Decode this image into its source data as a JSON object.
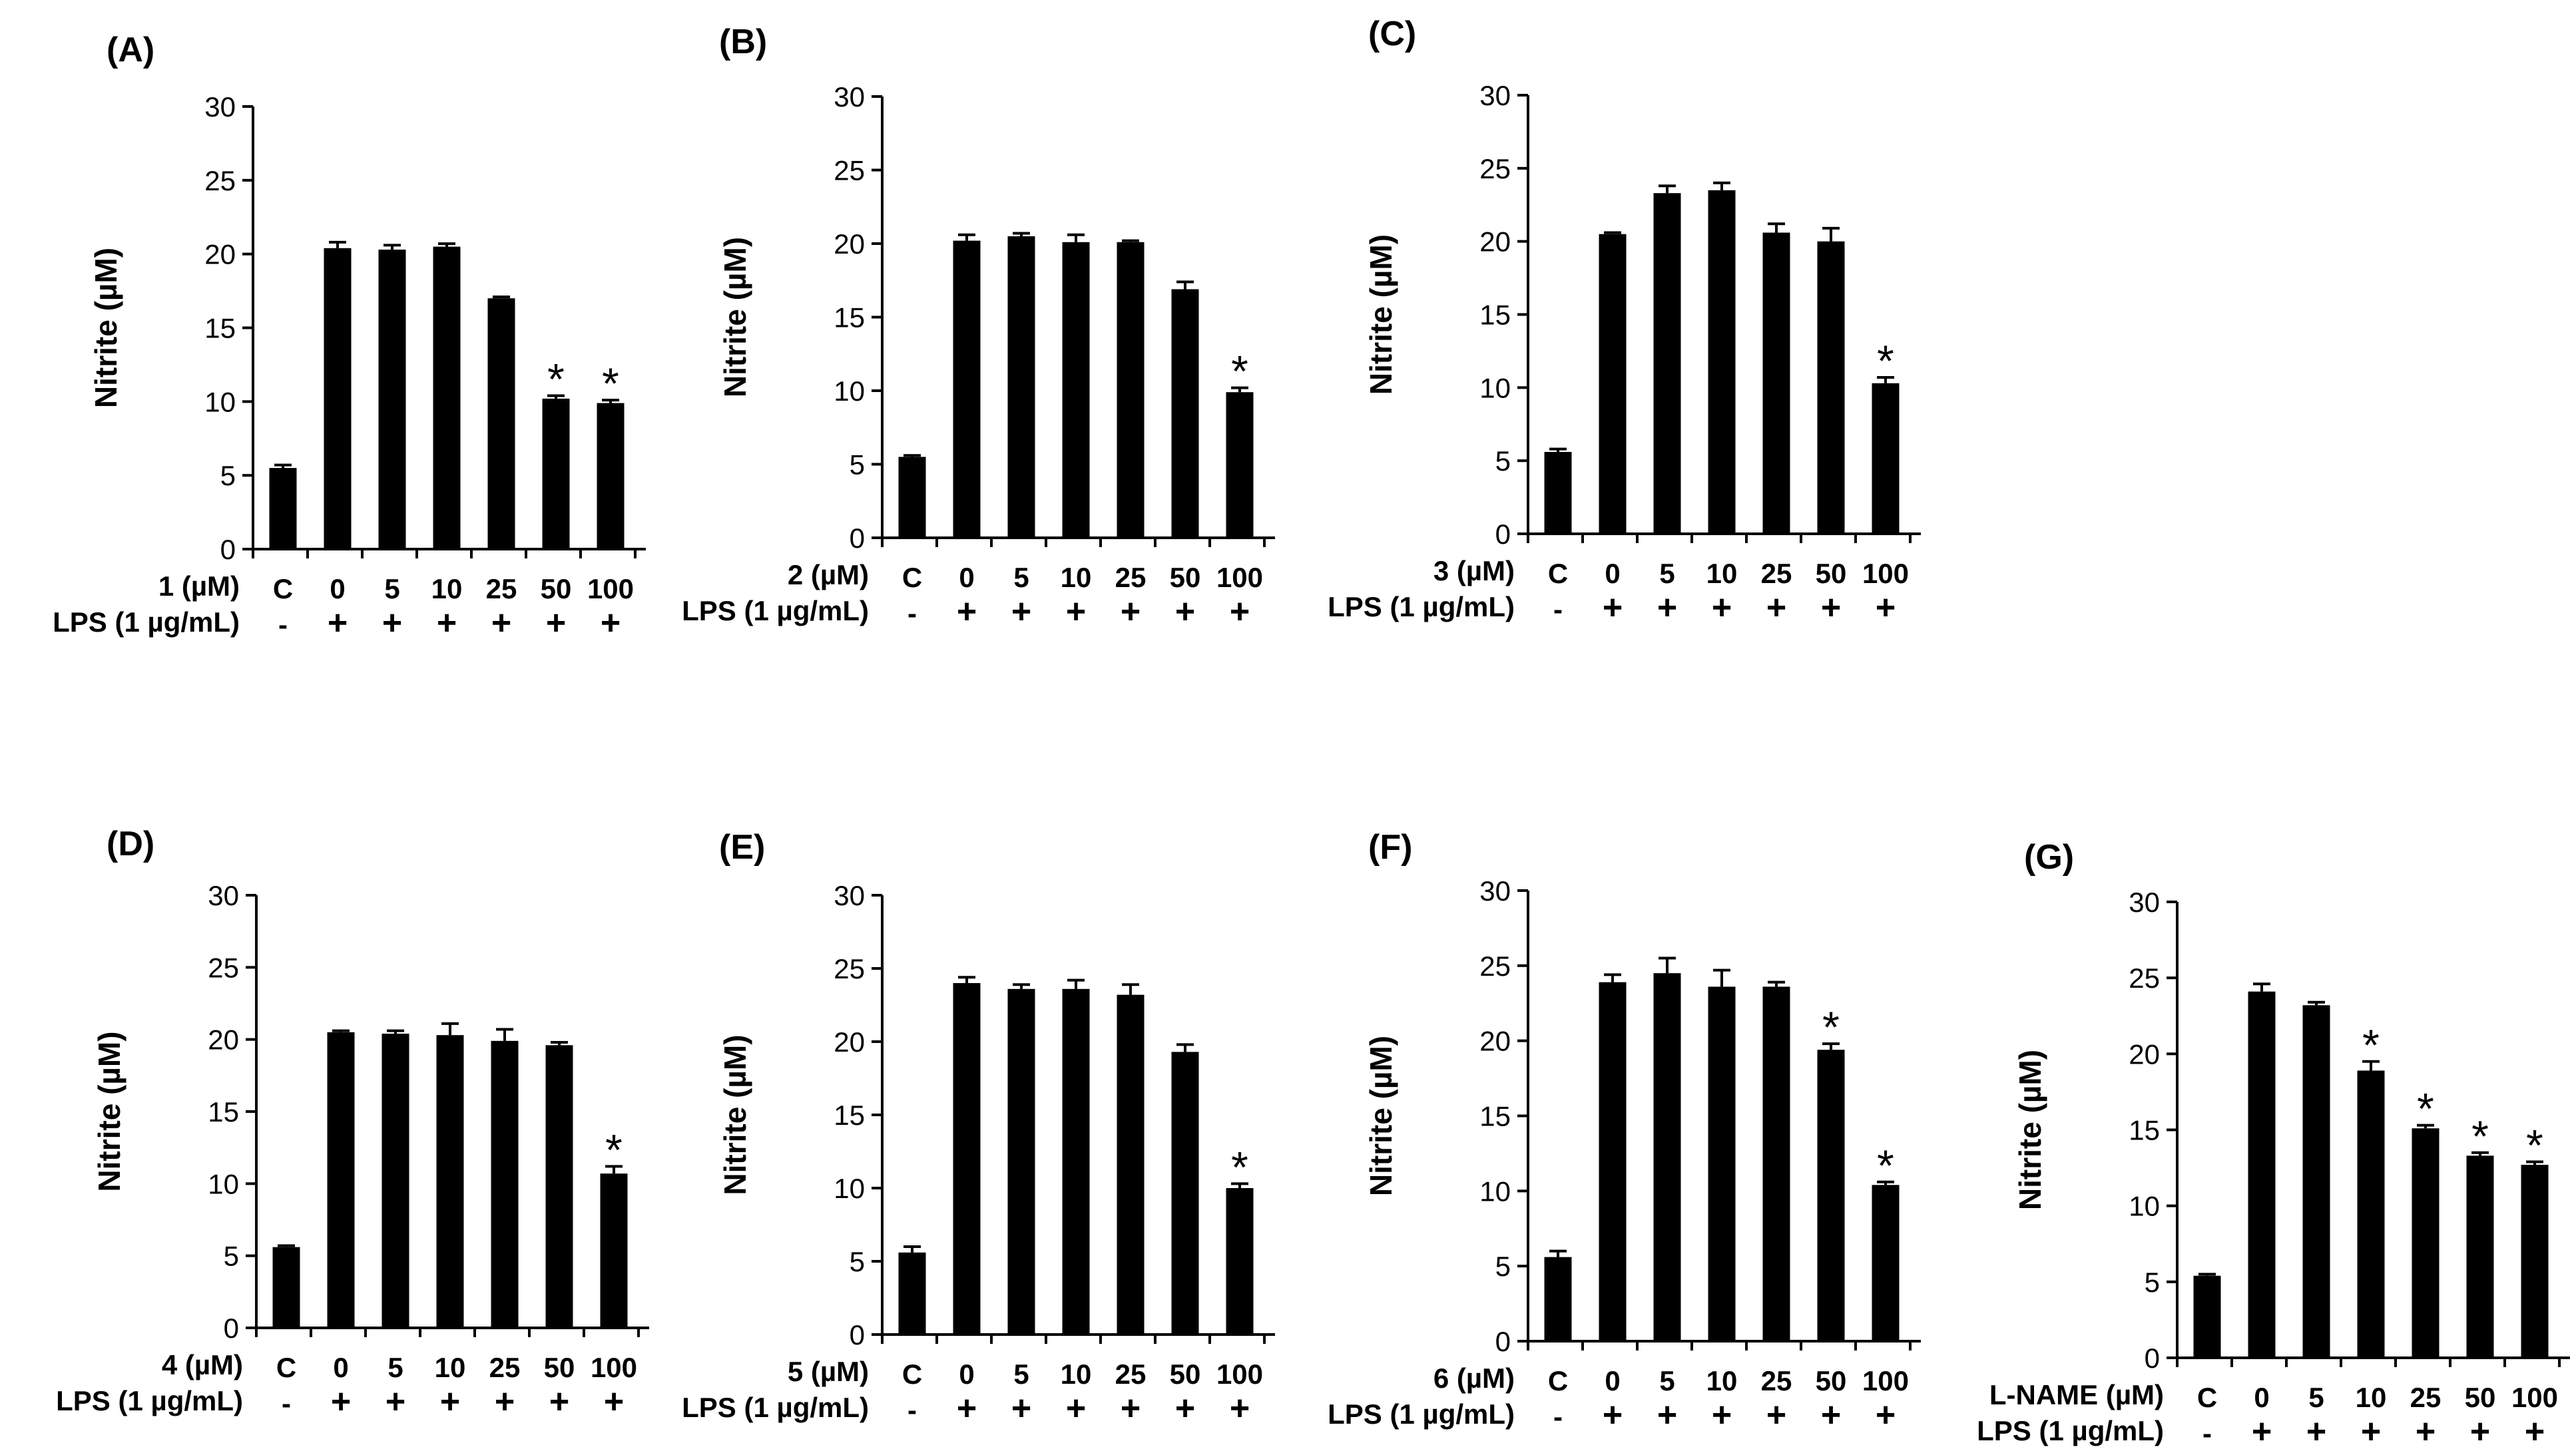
{
  "figure": {
    "ylabel": "Nitrite  (µM)",
    "lps_label": "LPS (1 µg/mL)",
    "lps_row": [
      "-",
      "+",
      "+",
      "+",
      "+",
      "+",
      "+"
    ],
    "categories": [
      "C",
      "0",
      "5",
      "10",
      "25",
      "50",
      "100"
    ],
    "yticks": [
      "0",
      "5",
      "10",
      "15",
      "20",
      "25",
      "30"
    ],
    "significance_marker": "*",
    "colors": {
      "bar": "#000000",
      "axis": "#000000",
      "background": "#ffffff"
    }
  },
  "chart_data": [
    {
      "type": "bar",
      "panel": "(A)",
      "title": "(A)",
      "xlabel": "1 (µM)",
      "ylabel": "Nitrite  (µM)",
      "categories": [
        "C",
        "0",
        "5",
        "10",
        "25",
        "50",
        "100"
      ],
      "values": [
        5.5,
        20.4,
        20.3,
        20.5,
        17.0,
        10.2,
        9.9
      ],
      "errors": [
        0.2,
        0.4,
        0.3,
        0.2,
        0.1,
        0.2,
        0.2
      ],
      "significant": [
        false,
        false,
        false,
        false,
        false,
        true,
        true
      ],
      "lps": [
        "-",
        "+",
        "+",
        "+",
        "+",
        "+",
        "+"
      ],
      "ylim": [
        0,
        30
      ],
      "yticks": [
        0,
        5,
        10,
        15,
        20,
        25,
        30
      ]
    },
    {
      "type": "bar",
      "panel": "(B)",
      "title": "(B)",
      "xlabel": "2 (µM)",
      "ylabel": "Nitrite  (µM)",
      "categories": [
        "C",
        "0",
        "5",
        "10",
        "25",
        "50",
        "100"
      ],
      "values": [
        5.5,
        20.2,
        20.5,
        20.1,
        20.1,
        16.9,
        9.9
      ],
      "errors": [
        0.1,
        0.4,
        0.2,
        0.5,
        0.1,
        0.5,
        0.3
      ],
      "significant": [
        false,
        false,
        false,
        false,
        false,
        false,
        true
      ],
      "lps": [
        "-",
        "+",
        "+",
        "+",
        "+",
        "+",
        "+"
      ],
      "ylim": [
        0,
        30
      ],
      "yticks": [
        0,
        5,
        10,
        15,
        20,
        25,
        30
      ]
    },
    {
      "type": "bar",
      "panel": "(C)",
      "title": "(C)",
      "xlabel": "3 (µM)",
      "ylabel": "Nitrite  (µM)",
      "categories": [
        "C",
        "0",
        "5",
        "10",
        "25",
        "50",
        "100"
      ],
      "values": [
        5.6,
        20.5,
        23.3,
        23.5,
        20.6,
        20.0,
        10.3
      ],
      "errors": [
        0.2,
        0.1,
        0.5,
        0.5,
        0.6,
        0.9,
        0.4
      ],
      "significant": [
        false,
        false,
        false,
        false,
        false,
        false,
        true
      ],
      "lps": [
        "-",
        "+",
        "+",
        "+",
        "+",
        "+",
        "+"
      ],
      "ylim": [
        0,
        30
      ],
      "yticks": [
        0,
        5,
        10,
        15,
        20,
        25,
        30
      ]
    },
    {
      "type": "bar",
      "panel": "(D)",
      "title": "(D)",
      "xlabel": "4 (µM)",
      "ylabel": "Nitrite  (µM)",
      "categories": [
        "C",
        "0",
        "5",
        "10",
        "25",
        "50",
        "100"
      ],
      "values": [
        5.6,
        20.5,
        20.4,
        20.3,
        19.9,
        19.6,
        10.7
      ],
      "errors": [
        0.1,
        0.1,
        0.2,
        0.8,
        0.8,
        0.2,
        0.5
      ],
      "significant": [
        false,
        false,
        false,
        false,
        false,
        false,
        true
      ],
      "lps": [
        "-",
        "+",
        "+",
        "+",
        "+",
        "+",
        "+"
      ],
      "ylim": [
        0,
        30
      ],
      "yticks": [
        0,
        5,
        10,
        15,
        20,
        25,
        30
      ]
    },
    {
      "type": "bar",
      "panel": "(E)",
      "title": "(E)",
      "xlabel": "5 (µM)",
      "ylabel": "Nitrite  (µM)",
      "categories": [
        "C",
        "0",
        "5",
        "10",
        "25",
        "50",
        "100"
      ],
      "values": [
        5.6,
        24.0,
        23.6,
        23.6,
        23.2,
        19.3,
        10.0
      ],
      "errors": [
        0.4,
        0.4,
        0.3,
        0.6,
        0.7,
        0.5,
        0.3
      ],
      "significant": [
        false,
        false,
        false,
        false,
        false,
        false,
        true
      ],
      "lps": [
        "-",
        "+",
        "+",
        "+",
        "+",
        "+",
        "+"
      ],
      "ylim": [
        0,
        30
      ],
      "yticks": [
        0,
        5,
        10,
        15,
        20,
        25,
        30
      ]
    },
    {
      "type": "bar",
      "panel": "(F)",
      "title": "(F)",
      "xlabel": "6 (µM)",
      "ylabel": "Nitrite  (µM)",
      "categories": [
        "C",
        "0",
        "5",
        "10",
        "25",
        "50",
        "100"
      ],
      "values": [
        5.6,
        23.9,
        24.5,
        23.6,
        23.6,
        19.4,
        10.4
      ],
      "errors": [
        0.4,
        0.5,
        1.0,
        1.1,
        0.3,
        0.4,
        0.2
      ],
      "significant": [
        false,
        false,
        false,
        false,
        false,
        true,
        true
      ],
      "lps": [
        "-",
        "+",
        "+",
        "+",
        "+",
        "+",
        "+"
      ],
      "ylim": [
        0,
        30
      ],
      "yticks": [
        0,
        5,
        10,
        15,
        20,
        25,
        30
      ]
    },
    {
      "type": "bar",
      "panel": "(G)",
      "title": "(G)",
      "xlabel": "L-NAME (µM)",
      "ylabel": "Nitrite  (µM)",
      "categories": [
        "C",
        "0",
        "5",
        "10",
        "25",
        "50",
        "100"
      ],
      "values": [
        5.4,
        24.1,
        23.2,
        18.9,
        15.1,
        13.3,
        12.7
      ],
      "errors": [
        0.1,
        0.5,
        0.2,
        0.6,
        0.2,
        0.2,
        0.2
      ],
      "significant": [
        false,
        false,
        false,
        true,
        true,
        true,
        true
      ],
      "lps": [
        "-",
        "+",
        "+",
        "+",
        "+",
        "+",
        "+"
      ],
      "ylim": [
        0,
        30
      ],
      "yticks": [
        0,
        5,
        10,
        15,
        20,
        25,
        30
      ]
    }
  ]
}
